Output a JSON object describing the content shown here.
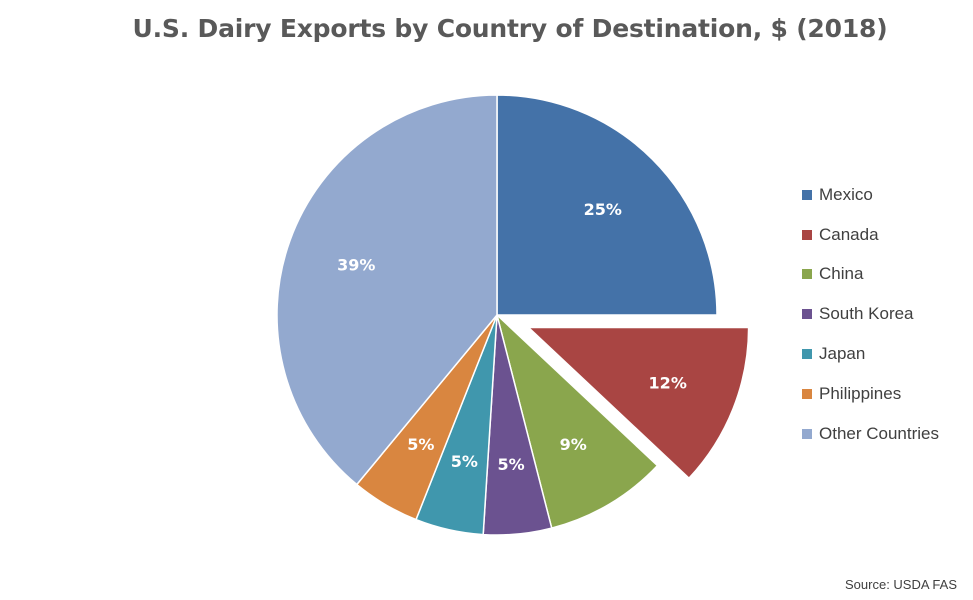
{
  "chart_data": {
    "type": "pie",
    "title": "U.S. Dairy Exports by Country of Destination, $ (2018)",
    "categories": [
      "Mexico",
      "Canada",
      "China",
      "South Korea",
      "Japan",
      "Philippines",
      "Other Countries"
    ],
    "values": [
      25,
      12,
      9,
      5,
      5,
      5,
      39
    ],
    "data_labels": [
      "25%",
      "12%",
      "9%",
      "5%",
      "5%",
      "5%",
      "39%"
    ],
    "colors": [
      "#4472a8",
      "#a94543",
      "#8aa64d",
      "#6b5290",
      "#4097ad",
      "#d98640",
      "#93a9cf"
    ],
    "exploded": [
      "Canada"
    ],
    "legend_position": "right",
    "source": "Source: USDA FAS"
  }
}
